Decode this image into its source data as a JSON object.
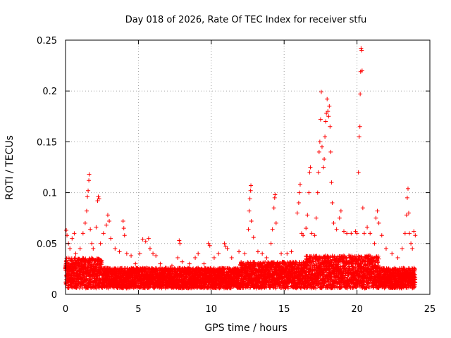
{
  "chart_data": {
    "type": "scatter",
    "title": "Day 018 of 2026, Rate Of TEC Index for receiver stfu",
    "xlabel": "GPS time / hours",
    "ylabel": "ROTI / TECUs",
    "xlim": [
      0,
      25
    ],
    "ylim": [
      0,
      0.25
    ],
    "x_ticks": [
      0,
      5,
      10,
      15,
      20,
      25
    ],
    "x_tick_labels": [
      "0",
      "5",
      "10",
      "15",
      "20",
      "25"
    ],
    "y_ticks": [
      0,
      0.05,
      0.1,
      0.15,
      0.2,
      0.25
    ],
    "y_tick_labels": [
      "0",
      "0.05",
      "0.1",
      "0.15",
      "0.2",
      "0.25"
    ],
    "grid": true,
    "marker": "+",
    "color": "#ff0000",
    "series": [
      {
        "name": "ROTI",
        "points": [
          [
            0.05,
            0.063
          ],
          [
            0.1,
            0.058
          ],
          [
            0.2,
            0.05
          ],
          [
            0.3,
            0.045
          ],
          [
            0.45,
            0.055
          ],
          [
            0.6,
            0.06
          ],
          [
            0.7,
            0.04
          ],
          [
            0.9,
            0.033
          ],
          [
            1.0,
            0.045
          ],
          [
            1.2,
            0.06
          ],
          [
            1.35,
            0.07
          ],
          [
            1.45,
            0.082
          ],
          [
            1.5,
            0.096
          ],
          [
            1.55,
            0.102
          ],
          [
            1.6,
            0.112
          ],
          [
            1.62,
            0.118
          ],
          [
            1.7,
            0.064
          ],
          [
            1.8,
            0.05
          ],
          [
            1.9,
            0.045
          ],
          [
            2.1,
            0.066
          ],
          [
            2.2,
            0.092
          ],
          [
            2.25,
            0.096
          ],
          [
            2.3,
            0.094
          ],
          [
            2.4,
            0.05
          ],
          [
            2.6,
            0.06
          ],
          [
            2.8,
            0.068
          ],
          [
            2.9,
            0.078
          ],
          [
            3.0,
            0.072
          ],
          [
            3.1,
            0.055
          ],
          [
            3.4,
            0.045
          ],
          [
            3.7,
            0.042
          ],
          [
            3.95,
            0.072
          ],
          [
            4.0,
            0.065
          ],
          [
            4.05,
            0.058
          ],
          [
            4.2,
            0.04
          ],
          [
            4.5,
            0.038
          ],
          [
            4.8,
            0.03
          ],
          [
            5.1,
            0.04
          ],
          [
            5.3,
            0.054
          ],
          [
            5.5,
            0.052
          ],
          [
            5.7,
            0.055
          ],
          [
            5.8,
            0.045
          ],
          [
            6.0,
            0.04
          ],
          [
            6.2,
            0.038
          ],
          [
            6.5,
            0.03
          ],
          [
            6.9,
            0.026
          ],
          [
            7.3,
            0.028
          ],
          [
            7.7,
            0.036
          ],
          [
            7.8,
            0.053
          ],
          [
            7.85,
            0.05
          ],
          [
            8.0,
            0.032
          ],
          [
            8.5,
            0.03
          ],
          [
            8.9,
            0.036
          ],
          [
            9.1,
            0.04
          ],
          [
            9.5,
            0.03
          ],
          [
            9.8,
            0.05
          ],
          [
            9.9,
            0.048
          ],
          [
            10.2,
            0.036
          ],
          [
            10.5,
            0.04
          ],
          [
            10.9,
            0.05
          ],
          [
            11.0,
            0.047
          ],
          [
            11.1,
            0.045
          ],
          [
            11.4,
            0.036
          ],
          [
            11.9,
            0.042
          ],
          [
            12.3,
            0.04
          ],
          [
            12.55,
            0.064
          ],
          [
            12.6,
            0.082
          ],
          [
            12.65,
            0.094
          ],
          [
            12.7,
            0.102
          ],
          [
            12.72,
            0.107
          ],
          [
            12.75,
            0.072
          ],
          [
            12.9,
            0.056
          ],
          [
            13.2,
            0.042
          ],
          [
            13.5,
            0.04
          ],
          [
            13.8,
            0.036
          ],
          [
            14.1,
            0.05
          ],
          [
            14.2,
            0.064
          ],
          [
            14.3,
            0.085
          ],
          [
            14.35,
            0.095
          ],
          [
            14.38,
            0.098
          ],
          [
            14.45,
            0.07
          ],
          [
            14.8,
            0.04
          ],
          [
            15.2,
            0.04
          ],
          [
            15.5,
            0.042
          ],
          [
            15.9,
            0.08
          ],
          [
            16.0,
            0.09
          ],
          [
            16.05,
            0.1
          ],
          [
            16.1,
            0.108
          ],
          [
            16.2,
            0.06
          ],
          [
            16.3,
            0.058
          ],
          [
            16.5,
            0.065
          ],
          [
            16.6,
            0.078
          ],
          [
            16.7,
            0.1
          ],
          [
            16.75,
            0.12
          ],
          [
            16.8,
            0.125
          ],
          [
            16.9,
            0.06
          ],
          [
            17.1,
            0.058
          ],
          [
            17.2,
            0.075
          ],
          [
            17.3,
            0.1
          ],
          [
            17.35,
            0.12
          ],
          [
            17.4,
            0.14
          ],
          [
            17.45,
            0.15
          ],
          [
            17.5,
            0.172
          ],
          [
            17.55,
            0.199
          ],
          [
            17.6,
            0.145
          ],
          [
            17.7,
            0.125
          ],
          [
            17.75,
            0.133
          ],
          [
            17.8,
            0.155
          ],
          [
            17.85,
            0.17
          ],
          [
            17.9,
            0.178
          ],
          [
            17.95,
            0.192
          ],
          [
            18.0,
            0.18
          ],
          [
            18.05,
            0.175
          ],
          [
            18.1,
            0.185
          ],
          [
            18.15,
            0.165
          ],
          [
            18.2,
            0.14
          ],
          [
            18.25,
            0.11
          ],
          [
            18.3,
            0.09
          ],
          [
            18.4,
            0.07
          ],
          [
            18.6,
            0.064
          ],
          [
            18.8,
            0.075
          ],
          [
            18.9,
            0.082
          ],
          [
            19.1,
            0.062
          ],
          [
            19.3,
            0.06
          ],
          [
            19.6,
            0.06
          ],
          [
            19.9,
            0.062
          ],
          [
            20.0,
            0.06
          ],
          [
            20.1,
            0.12
          ],
          [
            20.15,
            0.155
          ],
          [
            20.2,
            0.165
          ],
          [
            20.22,
            0.197
          ],
          [
            20.25,
            0.219
          ],
          [
            20.28,
            0.242
          ],
          [
            20.32,
            0.24
          ],
          [
            20.35,
            0.22
          ],
          [
            20.4,
            0.085
          ],
          [
            20.5,
            0.06
          ],
          [
            20.7,
            0.066
          ],
          [
            20.9,
            0.06
          ],
          [
            21.2,
            0.05
          ],
          [
            21.3,
            0.075
          ],
          [
            21.4,
            0.082
          ],
          [
            21.5,
            0.07
          ],
          [
            21.7,
            0.058
          ],
          [
            22.0,
            0.045
          ],
          [
            22.4,
            0.04
          ],
          [
            22.8,
            0.036
          ],
          [
            23.1,
            0.045
          ],
          [
            23.3,
            0.06
          ],
          [
            23.4,
            0.078
          ],
          [
            23.45,
            0.095
          ],
          [
            23.5,
            0.104
          ],
          [
            23.55,
            0.08
          ],
          [
            23.6,
            0.06
          ],
          [
            23.7,
            0.05
          ],
          [
            23.8,
            0.045
          ],
          [
            23.9,
            0.062
          ],
          [
            24.0,
            0.058
          ]
        ]
      }
    ]
  }
}
